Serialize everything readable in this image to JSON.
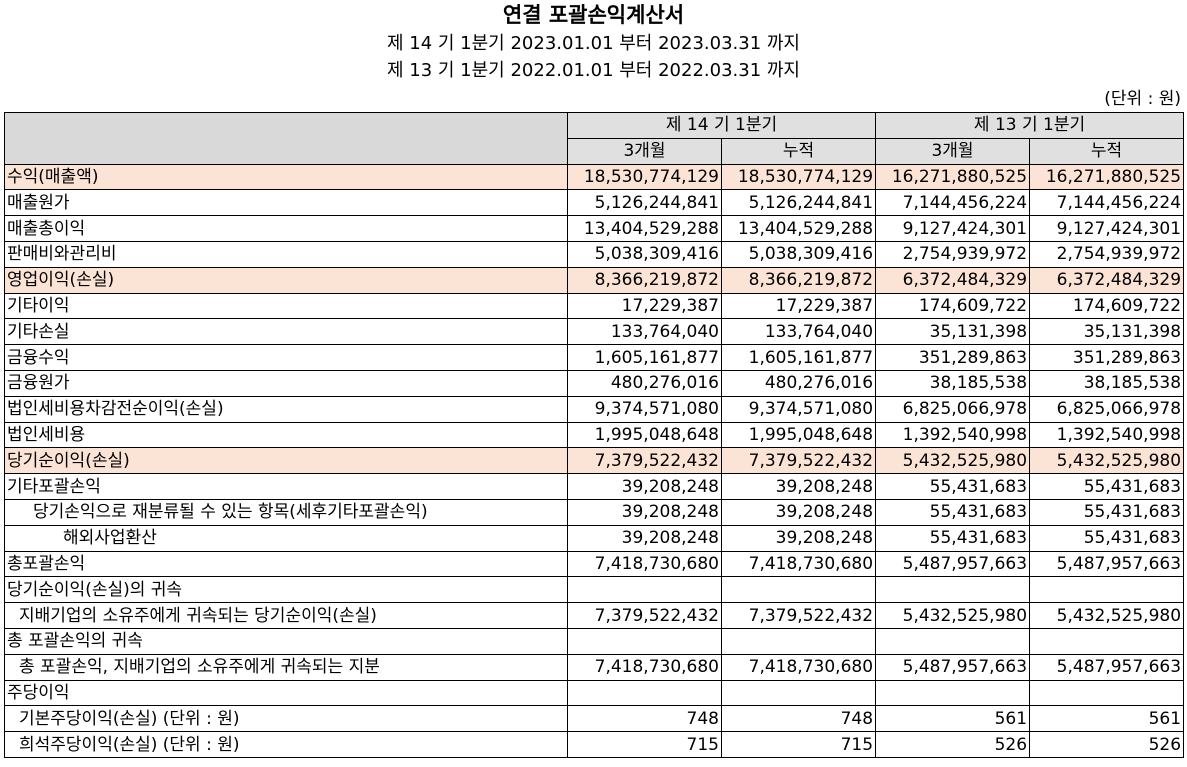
{
  "title": "연결 포괄손익계산서",
  "period_current": "제 14 기 1분기 2023.01.01 부터 2023.03.31 까지",
  "period_prior": "제 13 기 1분기 2022.01.01 부터 2022.03.31 까지",
  "unit": "(단위 : 원)",
  "header": {
    "group_current": "제 14 기 1분기",
    "group_prior": "제 13 기 1분기",
    "col_3m_current": "3개월",
    "col_cum_current": "누적",
    "col_3m_prior": "3개월",
    "col_cum_prior": "누적"
  },
  "rows": [
    {
      "label": "수익(매출액)",
      "v": [
        "18,530,774,129",
        "18,530,774,129",
        "16,271,880,525",
        "16,271,880,525"
      ]
    },
    {
      "label": "매출원가",
      "v": [
        "5,126,244,841",
        "5,126,244,841",
        "7,144,456,224",
        "7,144,456,224"
      ]
    },
    {
      "label": "매출총이익",
      "v": [
        "13,404,529,288",
        "13,404,529,288",
        "9,127,424,301",
        "9,127,424,301"
      ]
    },
    {
      "label": "판매비와관리비",
      "v": [
        "5,038,309,416",
        "5,038,309,416",
        "2,754,939,972",
        "2,754,939,972"
      ]
    },
    {
      "label": "영업이익(손실)",
      "v": [
        "8,366,219,872",
        "8,366,219,872",
        "6,372,484,329",
        "6,372,484,329"
      ]
    },
    {
      "label": "기타이익",
      "v": [
        "17,229,387",
        "17,229,387",
        "174,609,722",
        "174,609,722"
      ]
    },
    {
      "label": "기타손실",
      "v": [
        "133,764,040",
        "133,764,040",
        "35,131,398",
        "35,131,398"
      ]
    },
    {
      "label": "금융수익",
      "v": [
        "1,605,161,877",
        "1,605,161,877",
        "351,289,863",
        "351,289,863"
      ]
    },
    {
      "label": "금융원가",
      "v": [
        "480,276,016",
        "480,276,016",
        "38,185,538",
        "38,185,538"
      ]
    },
    {
      "label": "법인세비용차감전순이익(손실)",
      "v": [
        "9,374,571,080",
        "9,374,571,080",
        "6,825,066,978",
        "6,825,066,978"
      ]
    },
    {
      "label": "법인세비용",
      "v": [
        "1,995,048,648",
        "1,995,048,648",
        "1,392,540,998",
        "1,392,540,998"
      ]
    },
    {
      "label": "당기순이익(손실)",
      "v": [
        "7,379,522,432",
        "7,379,522,432",
        "5,432,525,980",
        "5,432,525,980"
      ]
    },
    {
      "label": "기타포괄손익",
      "v": [
        "39,208,248",
        "39,208,248",
        "55,431,683",
        "55,431,683"
      ]
    },
    {
      "label": "당기손익으로 재분류될 수 있는 항목(세후기타포괄손익)",
      "v": [
        "39,208,248",
        "39,208,248",
        "55,431,683",
        "55,431,683"
      ]
    },
    {
      "label": "해외사업환산",
      "v": [
        "39,208,248",
        "39,208,248",
        "55,431,683",
        "55,431,683"
      ]
    },
    {
      "label": "총포괄손익",
      "v": [
        "7,418,730,680",
        "7,418,730,680",
        "5,487,957,663",
        "5,487,957,663"
      ]
    },
    {
      "label": "당기순이익(손실)의 귀속",
      "v": [
        "",
        "",
        "",
        ""
      ]
    },
    {
      "label": "지배기업의 소유주에게 귀속되는 당기순이익(손실)",
      "v": [
        "7,379,522,432",
        "7,379,522,432",
        "5,432,525,980",
        "5,432,525,980"
      ]
    },
    {
      "label": "총 포괄손익의 귀속",
      "v": [
        "",
        "",
        "",
        ""
      ]
    },
    {
      "label": "총 포괄손익, 지배기업의 소유주에게 귀속되는 지분",
      "v": [
        "7,418,730,680",
        "7,418,730,680",
        "5,487,957,663",
        "5,487,957,663"
      ]
    },
    {
      "label": "주당이익",
      "v": [
        "",
        "",
        "",
        ""
      ]
    },
    {
      "label": "기본주당이익(손실) (단위 : 원)",
      "v": [
        "748",
        "748",
        "561",
        "561"
      ]
    },
    {
      "label": "희석주당이익(손실) (단위 : 원)",
      "v": [
        "715",
        "715",
        "526",
        "526"
      ]
    }
  ],
  "colors": {
    "highlight_row": "#fbe4d5",
    "header_bg": "#e0e0e0"
  }
}
